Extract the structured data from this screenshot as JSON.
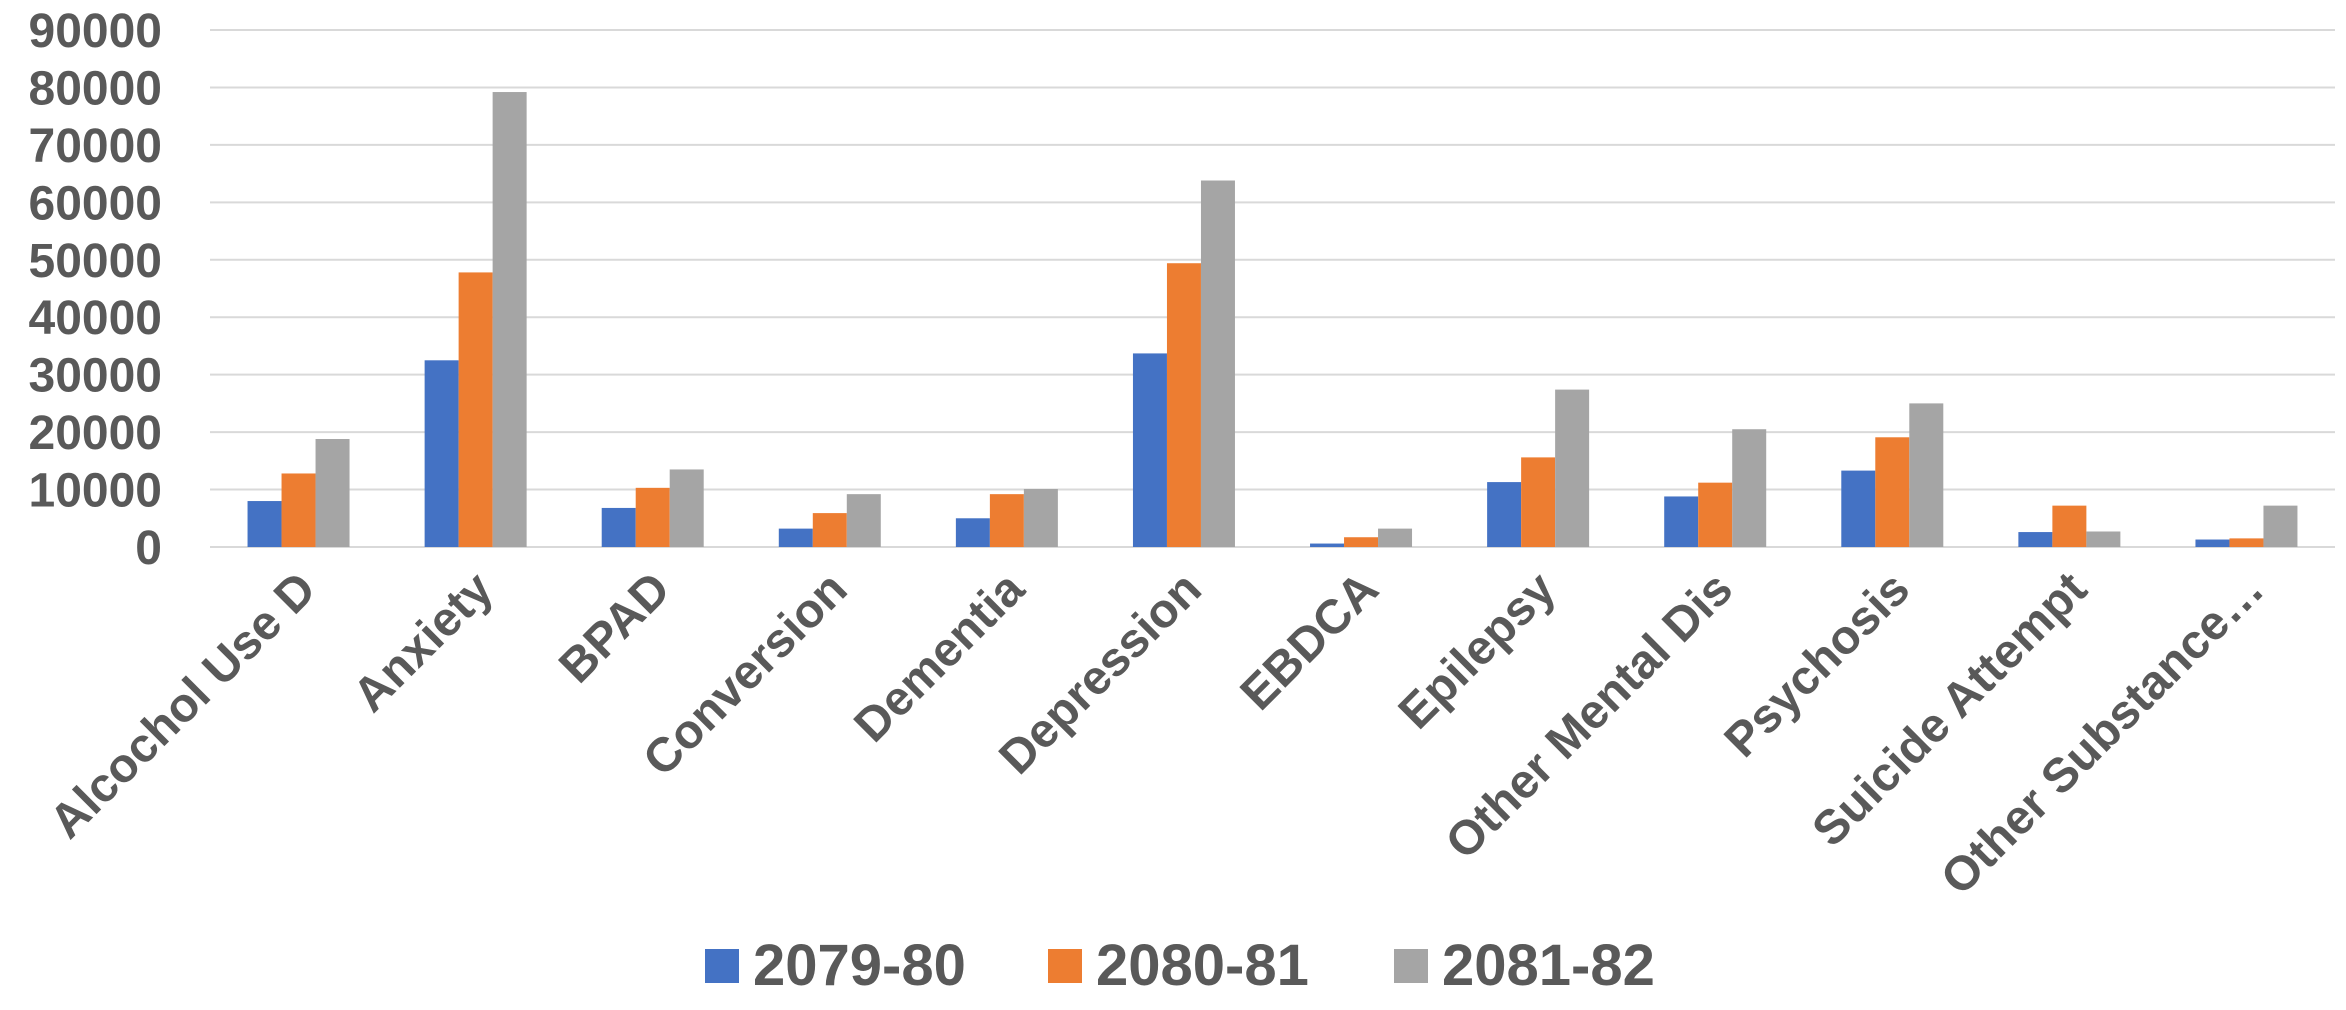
{
  "chart_data": {
    "type": "bar",
    "title": "",
    "xlabel": "",
    "ylabel": "",
    "ylim": [
      0,
      90000
    ],
    "yticks": [
      0,
      10000,
      20000,
      30000,
      40000,
      50000,
      60000,
      70000,
      80000,
      90000
    ],
    "grid": true,
    "legend_position": "bottom",
    "categories": [
      "Alcochol Use D",
      "Anxiety",
      "BPAD",
      "Conversion",
      "Dementia",
      "Depression",
      "EBDCA",
      "Epilepsy",
      "Other Mental Dis",
      "Psychosis",
      "Suicide Attempt",
      "Other Substance…"
    ],
    "series": [
      {
        "name": "2079-80",
        "color": "#4472C4",
        "values": [
          8000,
          32500,
          6800,
          3200,
          5000,
          33700,
          600,
          11300,
          8800,
          13300,
          2600,
          1300
        ]
      },
      {
        "name": "2080-81",
        "color": "#ED7D31",
        "values": [
          12800,
          47800,
          10300,
          5900,
          9200,
          49400,
          1700,
          15600,
          11200,
          19100,
          7200,
          1500
        ]
      },
      {
        "name": "2081-82",
        "color": "#A5A5A5",
        "values": [
          18800,
          79200,
          13500,
          9200,
          10100,
          63800,
          3200,
          27400,
          20500,
          25000,
          2700,
          7200
        ]
      }
    ]
  }
}
